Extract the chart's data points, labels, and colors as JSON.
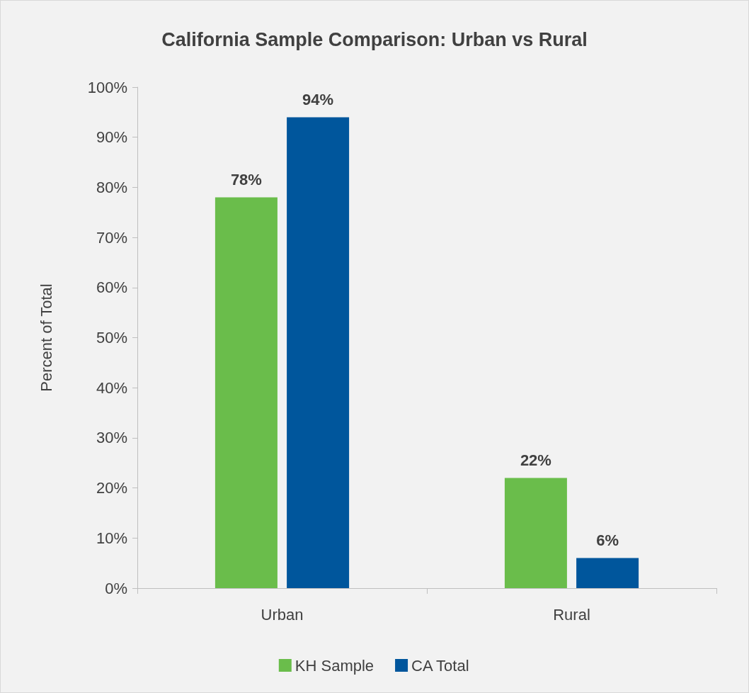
{
  "chart_data": {
    "type": "bar",
    "title": "California Sample Comparison: Urban vs Rural",
    "ylabel": "Percent of Total",
    "categories": [
      "Urban",
      "Rural"
    ],
    "series": [
      {
        "name": "KH Sample",
        "color": "#6abd4b",
        "values": [
          78,
          22
        ],
        "value_labels": [
          "78%",
          "22%"
        ]
      },
      {
        "name": "CA Total",
        "color": "#00569c",
        "values": [
          94,
          6
        ],
        "value_labels": [
          "94%",
          "6%"
        ]
      }
    ],
    "ylim": [
      0,
      100
    ],
    "yticks": [
      {
        "value": 0,
        "label": "0%"
      },
      {
        "value": 10,
        "label": "10%"
      },
      {
        "value": 20,
        "label": "20%"
      },
      {
        "value": 30,
        "label": "30%"
      },
      {
        "value": 40,
        "label": "40%"
      },
      {
        "value": 50,
        "label": "50%"
      },
      {
        "value": 60,
        "label": "60%"
      },
      {
        "value": 70,
        "label": "70%"
      },
      {
        "value": 80,
        "label": "80%"
      },
      {
        "value": 90,
        "label": "90%"
      },
      {
        "value": 100,
        "label": "100%"
      }
    ],
    "grid": false,
    "legend": "bottom"
  }
}
